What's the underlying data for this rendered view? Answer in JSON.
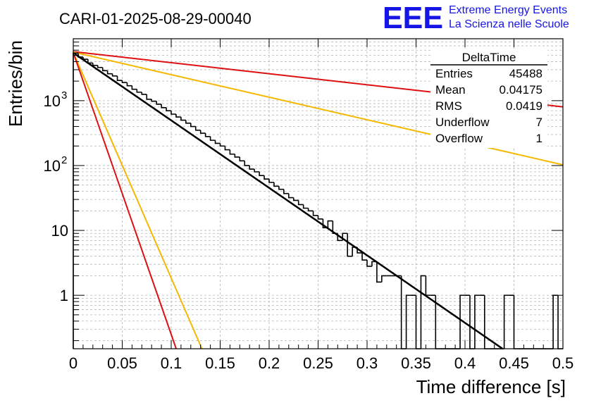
{
  "header": {
    "run_title": "CARI-01-2025-08-29-00040",
    "logo_text": "EEE",
    "brand_line1": "Extreme Energy Events",
    "brand_line2": "La Scienza nelle Scuole"
  },
  "stats": {
    "title": "DeltaTime",
    "rows": [
      {
        "label": "Entries",
        "value": "45488"
      },
      {
        "label": "Mean",
        "value": "0.04175"
      },
      {
        "label": "RMS",
        "value": "0.0419"
      },
      {
        "label": "Underflow",
        "value": "7"
      },
      {
        "label": "Overflow",
        "value": "1"
      }
    ]
  },
  "colors": {
    "hist": "#000000",
    "fit": "#000000",
    "red": "#dd1111",
    "orange": "#f5b800",
    "grid": "#b4b4b4",
    "brand": "#1515e6"
  },
  "chart_data": {
    "type": "line",
    "title": "CARI-01-2025-08-29-00040",
    "xlabel": "Time difference [s]",
    "ylabel": "Entries/bin",
    "xlim": [
      0,
      0.5
    ],
    "ylim": [
      0.15,
      9000
    ],
    "yscale": "log",
    "grid": true,
    "x_ticks": [
      {
        "v": 0,
        "label": "0"
      },
      {
        "v": 0.05,
        "label": "0.05"
      },
      {
        "v": 0.1,
        "label": "0.1"
      },
      {
        "v": 0.15,
        "label": "0.15"
      },
      {
        "v": 0.2,
        "label": "0.2"
      },
      {
        "v": 0.25,
        "label": "0.25"
      },
      {
        "v": 0.3,
        "label": "0.3"
      },
      {
        "v": 0.35,
        "label": "0.35"
      },
      {
        "v": 0.4,
        "label": "0.4"
      },
      {
        "v": 0.45,
        "label": "0.45"
      },
      {
        "v": 0.5,
        "label": "0.5"
      }
    ],
    "y_ticks": [
      {
        "v": 1,
        "base": "1",
        "exp": ""
      },
      {
        "v": 10,
        "base": "10",
        "exp": ""
      },
      {
        "v": 100,
        "base": "10",
        "exp": "2"
      },
      {
        "v": 1000,
        "base": "10",
        "exp": "3"
      }
    ],
    "histogram": {
      "name": "DeltaTime",
      "bin_width": 0.005,
      "values": [
        5400,
        4700,
        4350,
        3800,
        3500,
        3250,
        2900,
        2600,
        2400,
        2050,
        1900,
        1700,
        1500,
        1350,
        1250,
        1050,
        980,
        880,
        780,
        700,
        620,
        560,
        500,
        450,
        400,
        350,
        315,
        280,
        245,
        220,
        200,
        175,
        150,
        135,
        118,
        100,
        88,
        80,
        70,
        62,
        55,
        48,
        43,
        37,
        32,
        29,
        25,
        22,
        20,
        17,
        15,
        11,
        14,
        9,
        7,
        9,
        4,
        5.5,
        4.5,
        3.5,
        2.8,
        3.3,
        1.6,
        2,
        2,
        2,
        2,
        0,
        1,
        1,
        0,
        2,
        1,
        1,
        0,
        0,
        0,
        0,
        0,
        1,
        1,
        0,
        1,
        1,
        0,
        0,
        0,
        0,
        1,
        1,
        0,
        0,
        0,
        0,
        0,
        0,
        0,
        0,
        1,
        0
      ]
    },
    "series": [
      {
        "name": "fit",
        "color": "#000000",
        "A": 5450,
        "tau": 0.04175
      },
      {
        "name": "red-slow",
        "color": "#dd1111",
        "A": 5700,
        "tau": 0.255
      },
      {
        "name": "orange-slow",
        "color": "#f5b800",
        "A": 5600,
        "tau": 0.125
      },
      {
        "name": "orange-fast",
        "color": "#f5b800",
        "A": 5500,
        "tau": 0.0125
      },
      {
        "name": "red-fast",
        "color": "#dd1111",
        "A": 5500,
        "tau": 0.01
      }
    ]
  }
}
